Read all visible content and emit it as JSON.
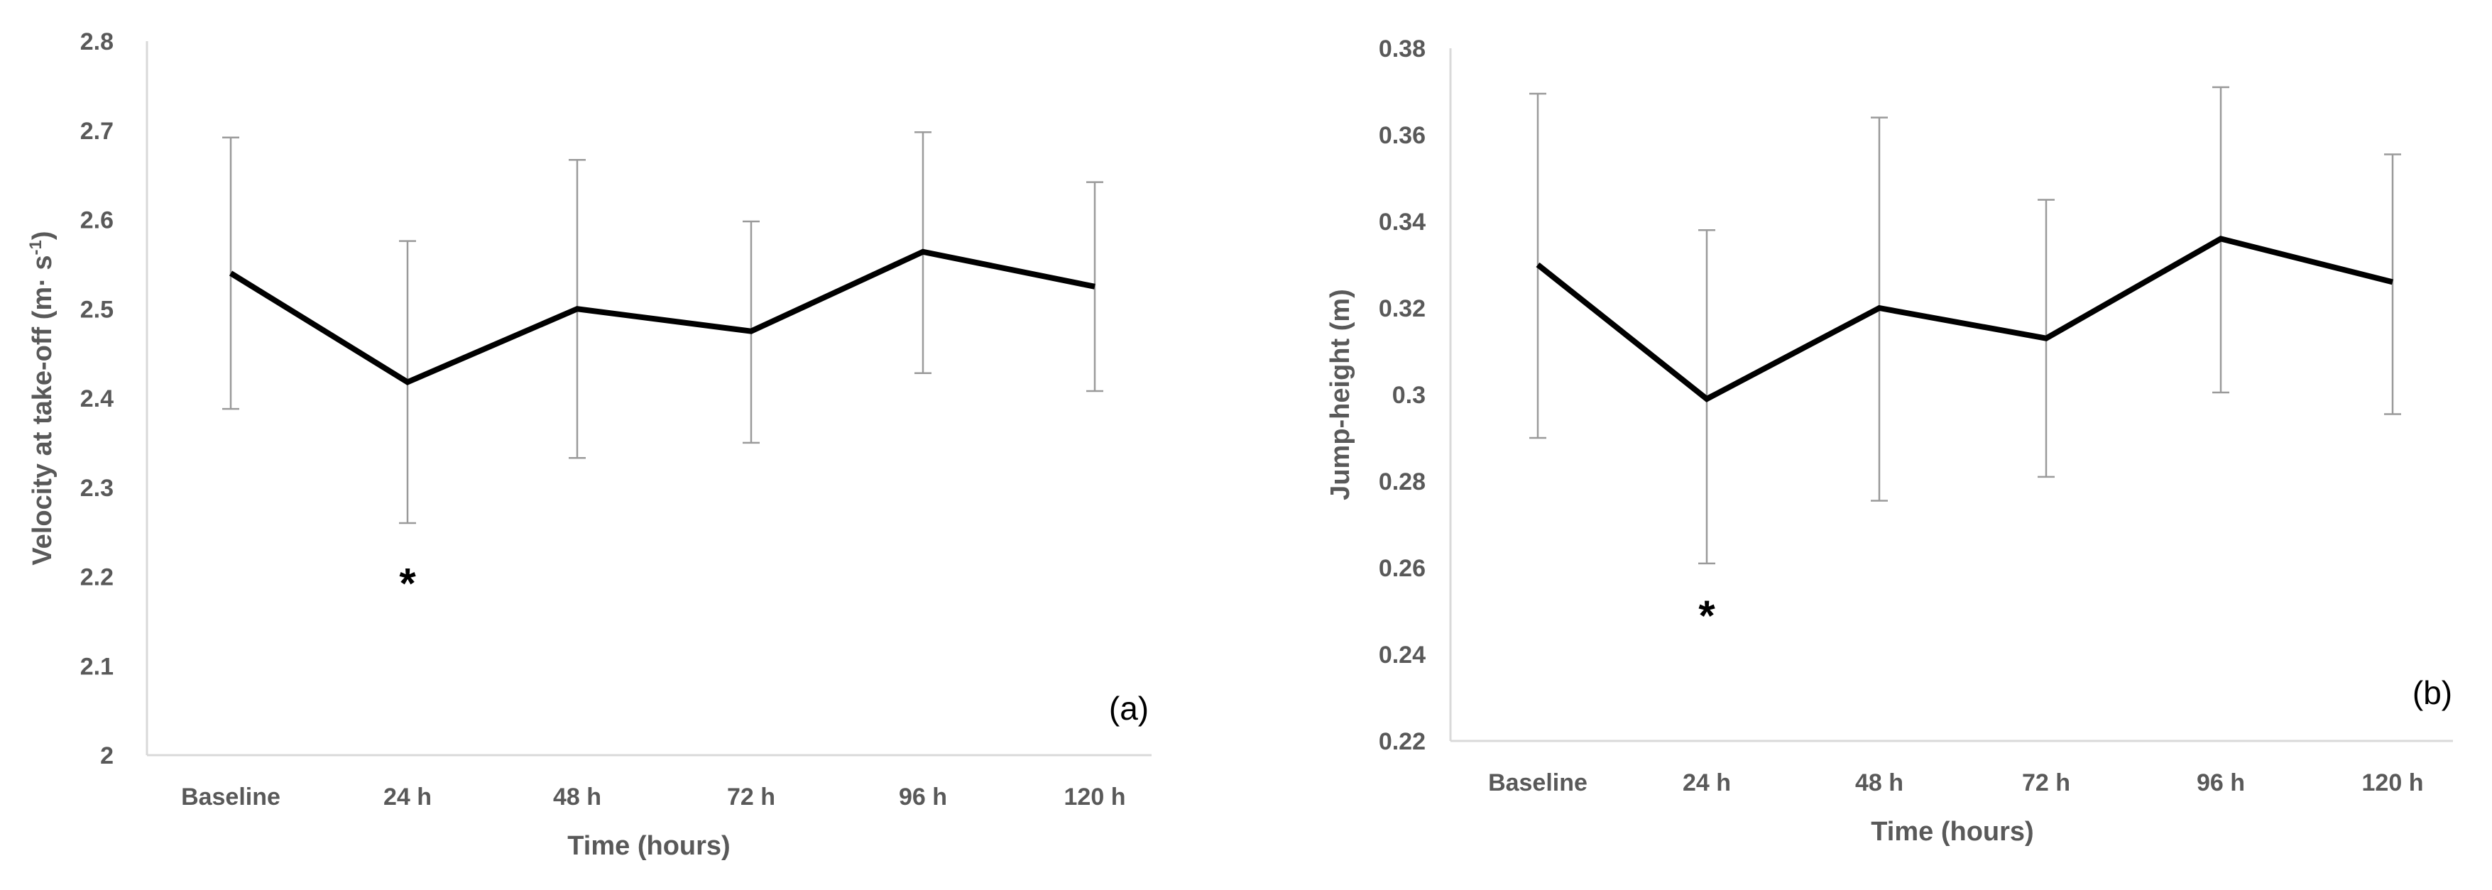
{
  "chart_data": [
    {
      "type": "line",
      "panel_label": "(a)",
      "title": "",
      "xlabel": "Time (hours)",
      "ylabel": "Velocity at take-off (m· s",
      "ylabel_sup": "-1",
      "ylabel_close": ")",
      "categories": [
        "Baseline",
        "24 h",
        "48 h",
        "72 h",
        "96 h",
        "120 h"
      ],
      "values": [
        2.54,
        2.418,
        2.5,
        2.475,
        2.564,
        2.525
      ],
      "err_upper": [
        2.692,
        2.576,
        2.667,
        2.598,
        2.698,
        2.642
      ],
      "err_lower": [
        2.388,
        2.26,
        2.333,
        2.35,
        2.428,
        2.408
      ],
      "ylim": [
        2.0,
        2.8
      ],
      "yticks": [
        2,
        2.1,
        2.2,
        2.3,
        2.4,
        2.5,
        2.6,
        2.7,
        2.8
      ],
      "ytick_labels": [
        "2",
        "2.1",
        "2.2",
        "2.3",
        "2.4",
        "2.5",
        "2.6",
        "2.7",
        "2.8"
      ],
      "annotations": [
        {
          "text": "*",
          "category": "24 h",
          "y": 2.2
        }
      ],
      "grid": false
    },
    {
      "type": "line",
      "panel_label": "(b)",
      "title": "",
      "xlabel": "Time (hours)",
      "ylabel": "Jump-height (m)",
      "ylabel_sup": "",
      "ylabel_close": "",
      "categories": [
        "Baseline",
        "24 h",
        "48 h",
        "72 h",
        "96 h",
        "120 h"
      ],
      "values": [
        0.33,
        0.299,
        0.32,
        0.313,
        0.336,
        0.326
      ],
      "err_upper": [
        0.3695,
        0.338,
        0.364,
        0.345,
        0.371,
        0.3555
      ],
      "err_lower": [
        0.29,
        0.261,
        0.2755,
        0.281,
        0.3005,
        0.2955
      ],
      "ylim": [
        0.22,
        0.38
      ],
      "yticks": [
        0.22,
        0.24,
        0.26,
        0.28,
        0.3,
        0.32,
        0.34,
        0.36,
        0.38
      ],
      "ytick_labels": [
        "0.22",
        "0.24",
        "0.26",
        "0.28",
        "0.3",
        "0.32",
        "0.34",
        "0.36",
        "0.38"
      ],
      "annotations": [
        {
          "text": "*",
          "category": "24 h",
          "y": 0.2505
        }
      ],
      "grid": false
    }
  ]
}
